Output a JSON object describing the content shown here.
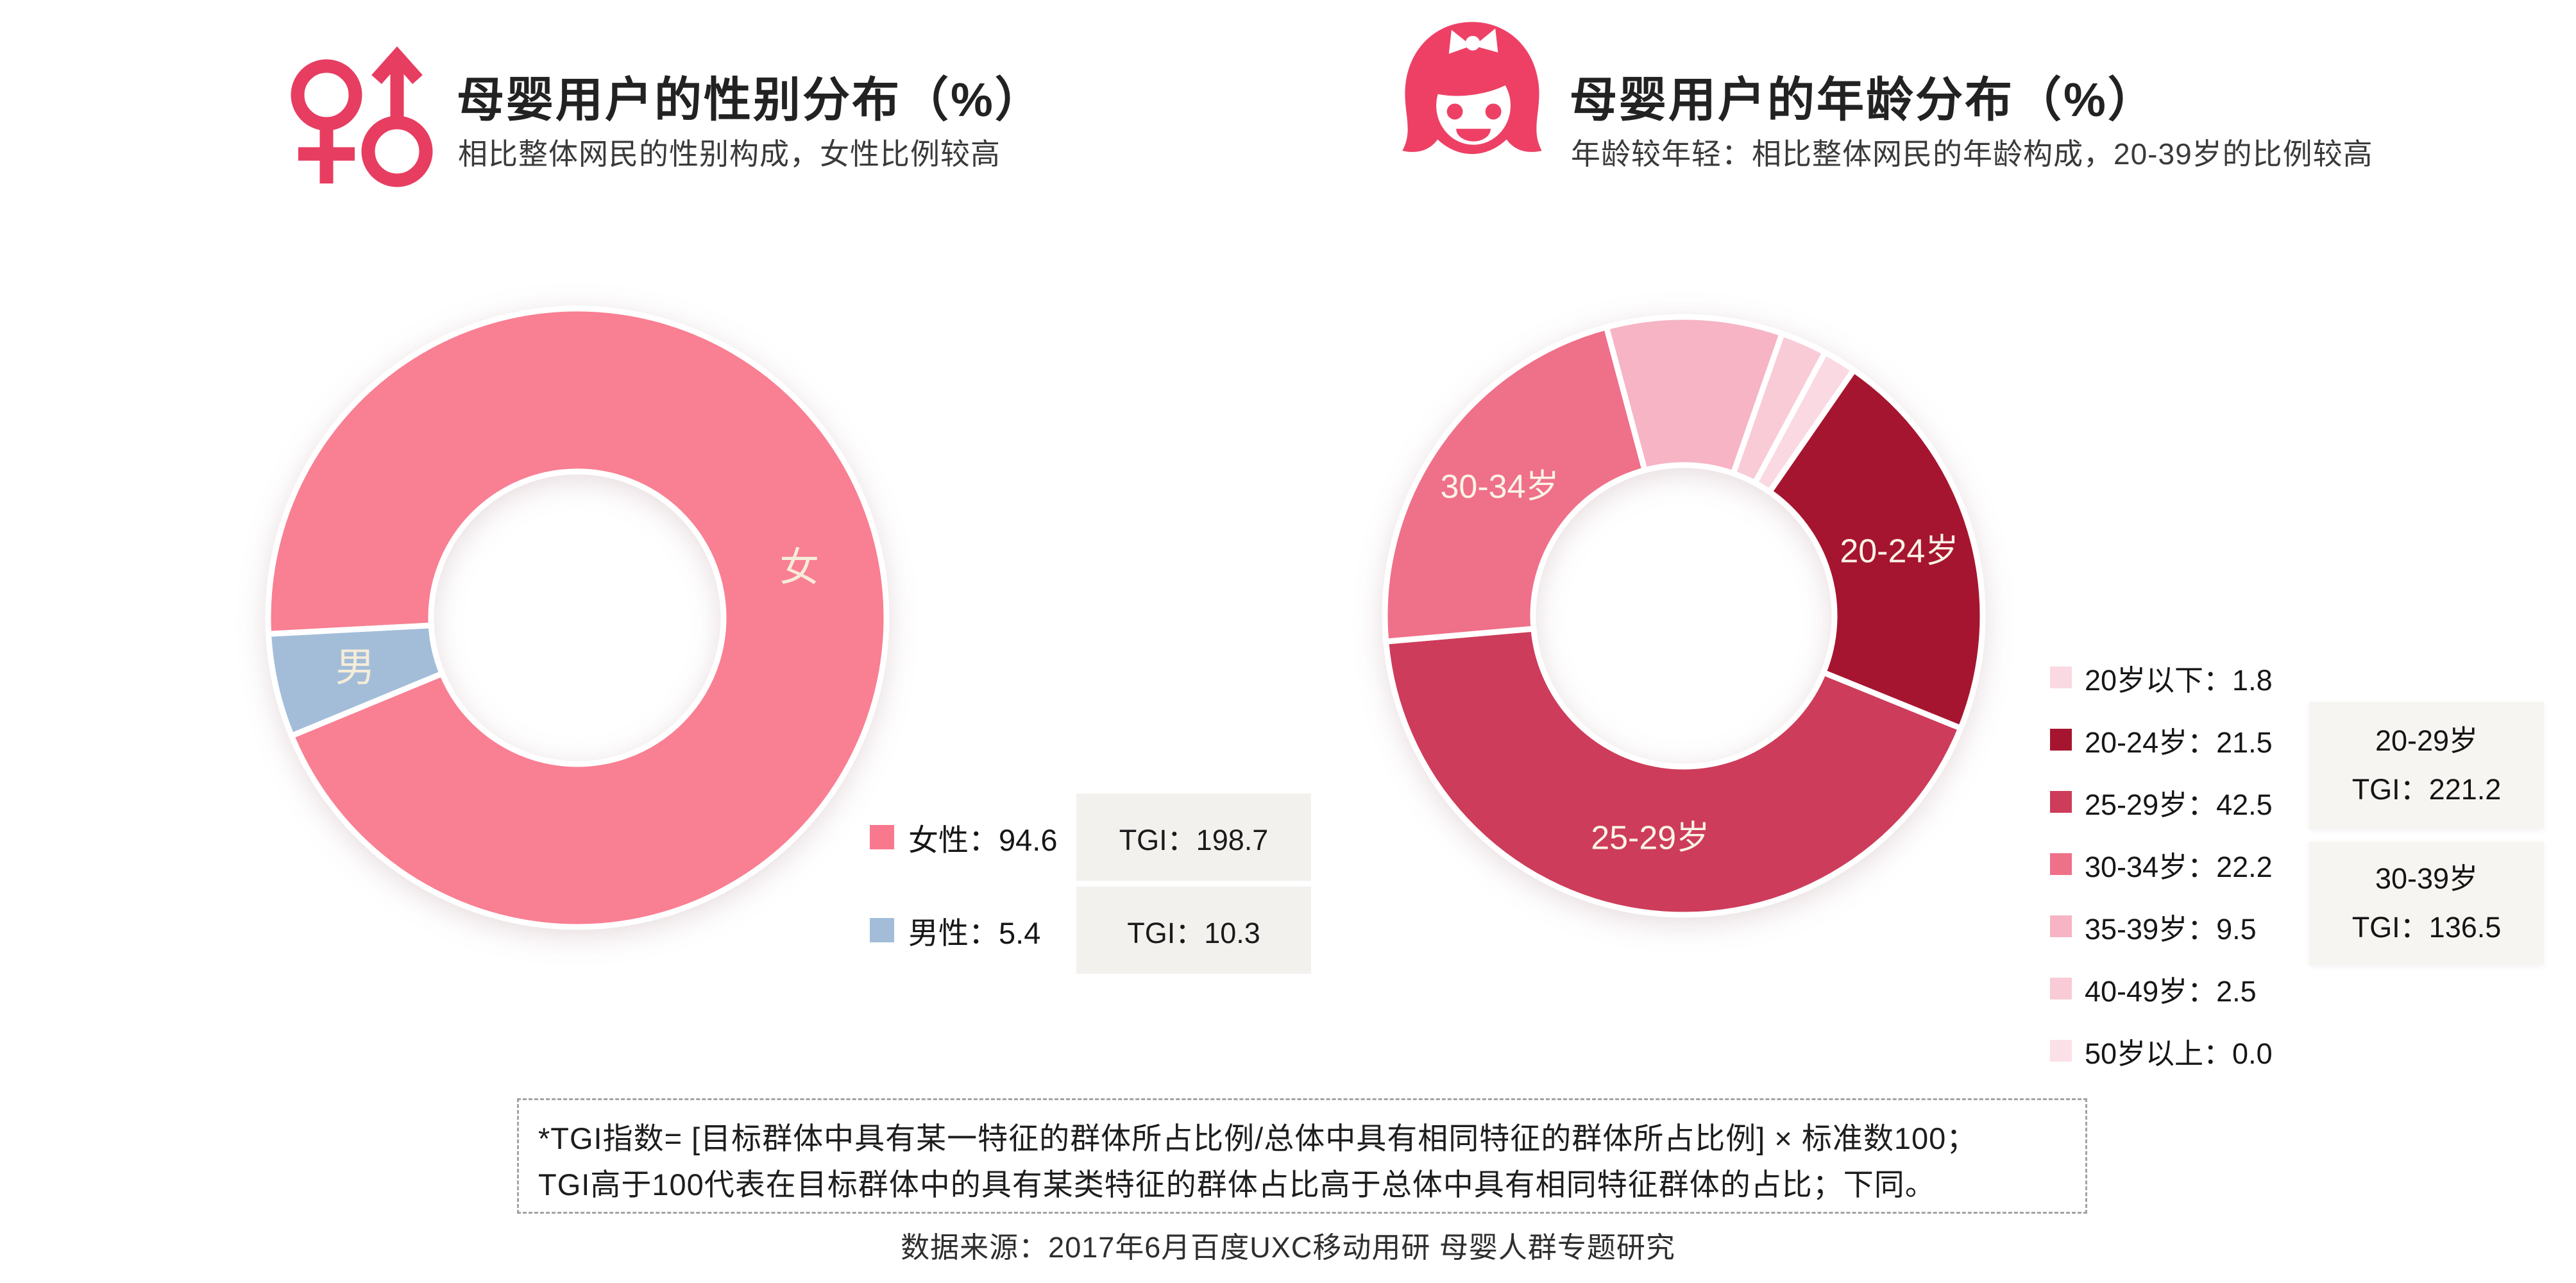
{
  "page": {
    "background": "#ffffff",
    "footnote_line1": "*TGI指数= [目标群体中具有某一特征的群体所占比例/总体中具有相同特征的群体所占比例] × 标准数100；",
    "footnote_line2": "TGI高于100代表在目标群体中的具有某类特征的群体占比高于总体中具有相同特征群体的占比；下同。",
    "source_line": "数据来源：2017年6月百度UXC移动用研 母婴人群专题研究"
  },
  "colors": {
    "brand_pink": "#f97f92",
    "male_blue": "#a3bdd9",
    "gender_icon": "#e73d60",
    "girl_icon": "#ee4065",
    "tgi_chip_bg": "#f3f1ee",
    "tgi_card_bg": "#f7f5f2"
  },
  "gender_section": {
    "title": "母婴用户的性别分布（%）",
    "subtitle": "相比整体网民的性别构成，女性比例较高",
    "legend": [
      {
        "label": "女性：94.6",
        "tgi": "TGI：198.7",
        "color": "#f8788e"
      },
      {
        "label": "男性：5.4",
        "tgi": "TGI：10.3",
        "color": "#a3bdd9"
      }
    ]
  },
  "age_section": {
    "title": "母婴用户的年龄分布（%）",
    "subtitle": "年龄较年轻：相比整体网民的年龄构成，20-39岁的比例较高",
    "legend": [
      {
        "label": "20岁以下：1.8",
        "color": "#fbd9e2"
      },
      {
        "label": "20-24岁：21.5",
        "color": "#a6152f"
      },
      {
        "label": "25-29岁：42.5",
        "color": "#cd3c5a"
      },
      {
        "label": "30-34岁：22.2",
        "color": "#ef7089"
      },
      {
        "label": "35-39岁：9.5",
        "color": "#f6b4c4"
      },
      {
        "label": "40-49岁：2.5",
        "color": "#f9cbd7"
      },
      {
        "label": "50岁以上：0.0",
        "color": "#fce0e8"
      }
    ],
    "tgi_boxes": [
      {
        "range": "20-29岁",
        "tgi_text": "TGI：221.2"
      },
      {
        "range": "30-39岁",
        "tgi_text": "TGI：136.5"
      }
    ]
  },
  "chart_data": [
    {
      "type": "pie",
      "title": "母婴用户的性别分布（%）",
      "labels": [
        "女性",
        "男性"
      ],
      "values": [
        94.6,
        5.4
      ],
      "tgi": [
        198.7,
        10.3
      ],
      "colors": [
        "#f97f92",
        "#a3bdd9"
      ],
      "donut": true,
      "start_angle_cw_from_top": 267,
      "slice_labels": [
        "女",
        "男"
      ],
      "slice_label_color": "#f5ecd9",
      "legend_position": "bottom-right"
    },
    {
      "type": "pie",
      "title": "母婴用户的年龄分布（%）",
      "labels": [
        "20岁以下",
        "20-24岁",
        "25-29岁",
        "30-34岁",
        "35-39岁",
        "40-49岁",
        "50岁以上"
      ],
      "values": [
        1.8,
        21.5,
        42.5,
        22.2,
        9.5,
        2.5,
        0.0
      ],
      "colors": [
        "#fbd9e2",
        "#a6152f",
        "#cd3c5a",
        "#ef7089",
        "#f6b4c4",
        "#f9cbd7",
        "#fce0e8"
      ],
      "donut": true,
      "start_angle_cw_from_top": 28.2,
      "slice_labels": [
        null,
        "20-24岁",
        "25-29岁",
        "30-34岁",
        null,
        null,
        null
      ],
      "slice_label_color": "#fbf4e8",
      "group_tgi": [
        {
          "range": "20-29岁",
          "tgi": 221.2
        },
        {
          "range": "30-39岁",
          "tgi": 136.5
        }
      ],
      "legend_position": "right"
    }
  ]
}
